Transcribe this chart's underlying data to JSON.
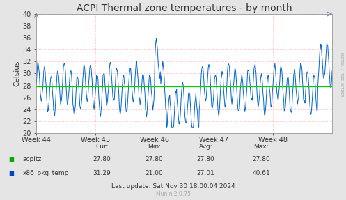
{
  "title": "ACPI Thermal zone temperatures - by month",
  "ylabel": "Celsius",
  "ylim": [
    20,
    40
  ],
  "yticks": [
    20,
    22,
    24,
    26,
    28,
    30,
    32,
    34,
    36,
    38,
    40
  ],
  "x_week_labels": [
    "Week 44",
    "Week 45",
    "Week 46",
    "Week 47",
    "Week 48"
  ],
  "bg_color": "#e5e5e5",
  "plot_bg_color": "#ffffff",
  "grid_color": "#ff9999",
  "line_color_acpitz": "#00cc00",
  "line_color_x86": "#0066cc",
  "acpitz_value": 27.8,
  "legend_items": [
    {
      "label": "acpitz",
      "color": "#00aa00"
    },
    {
      "label": "x86_pkg_temp",
      "color": "#0044bb"
    }
  ],
  "table_headers": [
    "Cur:",
    "Min:",
    "Avg:",
    "Max:"
  ],
  "table_acpitz": [
    "27.80",
    "27.80",
    "27.80",
    "27.80"
  ],
  "table_x86": [
    "31.29",
    "21.00",
    "27.01",
    "40.61"
  ],
  "last_update": "Last update: Sat Nov 30 18:00:04 2024",
  "munin_version": "Munin 2.0.75",
  "rrdtool_label": "RRDTOOL / TOBI OETIKER",
  "title_fontsize": 10,
  "axis_fontsize": 7.5,
  "tick_fontsize": 7
}
